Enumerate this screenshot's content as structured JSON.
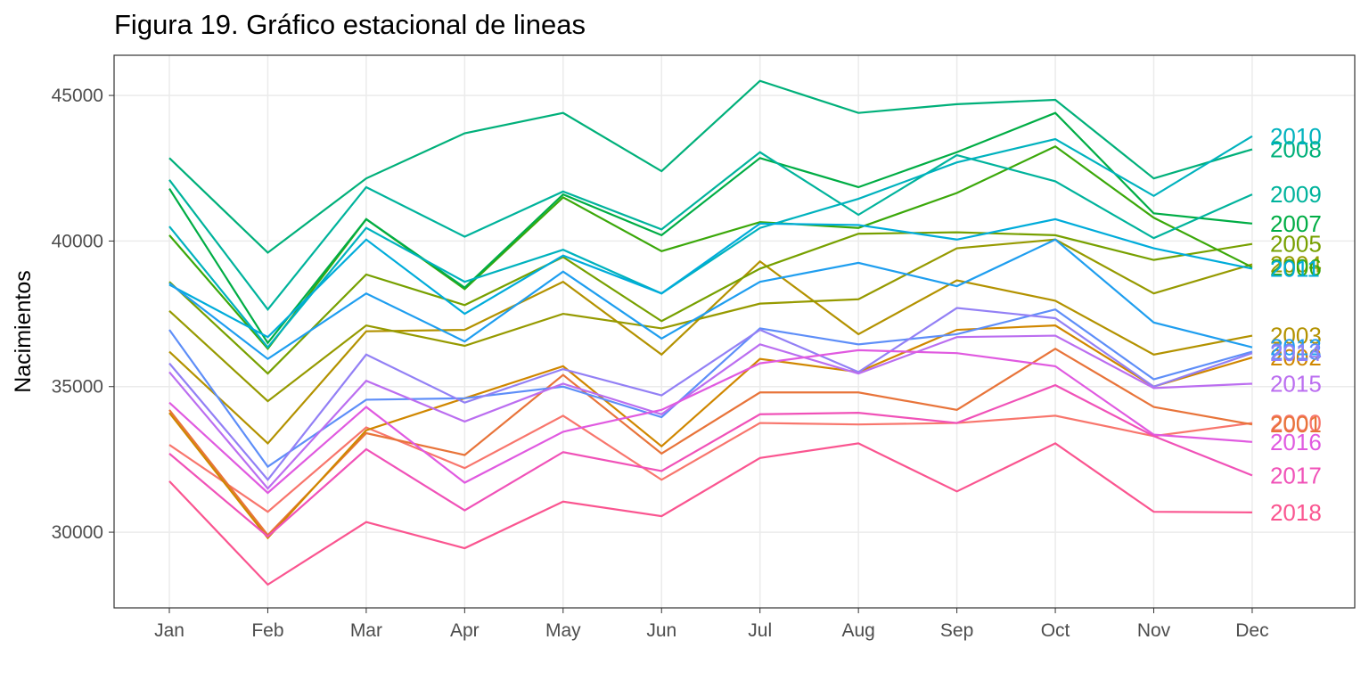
{
  "chart_data": {
    "type": "line",
    "title": "Figura 19. Gráfico estacional de lineas",
    "y_label": "Nacimientos",
    "categories": [
      "Jan",
      "Feb",
      "Mar",
      "Apr",
      "May",
      "Jun",
      "Jul",
      "Aug",
      "Sep",
      "Oct",
      "Nov",
      "Dec"
    ],
    "ylim": [
      27400,
      46380
    ],
    "yticks": [
      30000,
      35000,
      40000,
      45000
    ],
    "grid": true,
    "series": [
      {
        "name": "2000",
        "color": "#F8766D",
        "values": [
          33000,
          30700,
          33600,
          32200,
          34000,
          31800,
          33750,
          33700,
          33750,
          34000,
          33300,
          33750
        ]
      },
      {
        "name": "2001",
        "color": "#E8743A",
        "values": [
          34200,
          29900,
          33400,
          32650,
          35400,
          32700,
          34800,
          34800,
          34200,
          36300,
          34300,
          33700
        ]
      },
      {
        "name": "2002",
        "color": "#D08700",
        "values": [
          34100,
          29800,
          33500,
          34600,
          35700,
          32950,
          35950,
          35500,
          36950,
          37100,
          35000,
          36000
        ]
      },
      {
        "name": "2003",
        "color": "#B39200",
        "values": [
          36200,
          33050,
          36900,
          36950,
          38600,
          36100,
          39300,
          36800,
          38650,
          37950,
          36100,
          36750
        ]
      },
      {
        "name": "2004",
        "color": "#969A00",
        "values": [
          37600,
          34500,
          37100,
          36400,
          37500,
          37000,
          37850,
          38000,
          39750,
          40050,
          38200,
          39200
        ]
      },
      {
        "name": "2005",
        "color": "#77A000",
        "values": [
          38600,
          35450,
          38850,
          37800,
          39450,
          37250,
          39050,
          40250,
          40300,
          40200,
          39350,
          39900
        ]
      },
      {
        "name": "2006",
        "color": "#3BA80A",
        "values": [
          40200,
          36300,
          40750,
          38350,
          41500,
          39650,
          40650,
          40450,
          41650,
          43250,
          40800,
          39100
        ]
      },
      {
        "name": "2007",
        "color": "#00AD45",
        "values": [
          41800,
          36500,
          40750,
          38400,
          41600,
          40200,
          42850,
          41850,
          43050,
          44400,
          40950,
          40600
        ]
      },
      {
        "name": "2008",
        "color": "#00B07A",
        "values": [
          42850,
          39600,
          42150,
          43700,
          44400,
          42400,
          45500,
          44400,
          44700,
          44850,
          42150,
          43150
        ]
      },
      {
        "name": "2009",
        "color": "#00B39C",
        "values": [
          42100,
          37650,
          41850,
          40150,
          41700,
          40400,
          43050,
          40900,
          42950,
          42050,
          40100,
          41600
        ]
      },
      {
        "name": "2010",
        "color": "#00B2BE",
        "values": [
          40500,
          36350,
          40450,
          38600,
          39700,
          38200,
          40450,
          41450,
          42700,
          43500,
          41550,
          43600
        ]
      },
      {
        "name": "2011",
        "color": "#00ACDA",
        "values": [
          38500,
          36700,
          40050,
          37500,
          39500,
          38200,
          40600,
          40550,
          40050,
          40750,
          39750,
          39050
        ]
      },
      {
        "name": "2012",
        "color": "#1F9EEF",
        "values": [
          38550,
          35950,
          38200,
          36550,
          38950,
          36650,
          38600,
          39250,
          38450,
          40050,
          37200,
          36350
        ]
      },
      {
        "name": "2013",
        "color": "#5E8EF8",
        "values": [
          36950,
          32250,
          34550,
          34600,
          35000,
          33950,
          37000,
          36450,
          36800,
          37650,
          35250,
          36200
        ]
      },
      {
        "name": "2014",
        "color": "#9380F5",
        "values": [
          35800,
          31800,
          36100,
          34450,
          35600,
          34700,
          36950,
          35500,
          37700,
          37350,
          35000,
          36150
        ]
      },
      {
        "name": "2015",
        "color": "#BB6EF0",
        "values": [
          35500,
          31500,
          35200,
          33800,
          35100,
          34050,
          36450,
          35450,
          36700,
          36750,
          34950,
          35100
        ]
      },
      {
        "name": "2016",
        "color": "#E05AE0",
        "values": [
          34450,
          31350,
          34300,
          31700,
          33450,
          34200,
          35800,
          36250,
          36150,
          35700,
          33350,
          33100
        ]
      },
      {
        "name": "2017",
        "color": "#F052B8",
        "values": [
          32700,
          29850,
          32850,
          30750,
          32750,
          32100,
          34050,
          34100,
          33750,
          35050,
          33300,
          31950
        ]
      },
      {
        "name": "2018",
        "color": "#FA5590",
        "values": [
          31750,
          28200,
          30350,
          29450,
          31050,
          30550,
          32550,
          33050,
          31400,
          33050,
          30700,
          30680
        ]
      }
    ]
  }
}
